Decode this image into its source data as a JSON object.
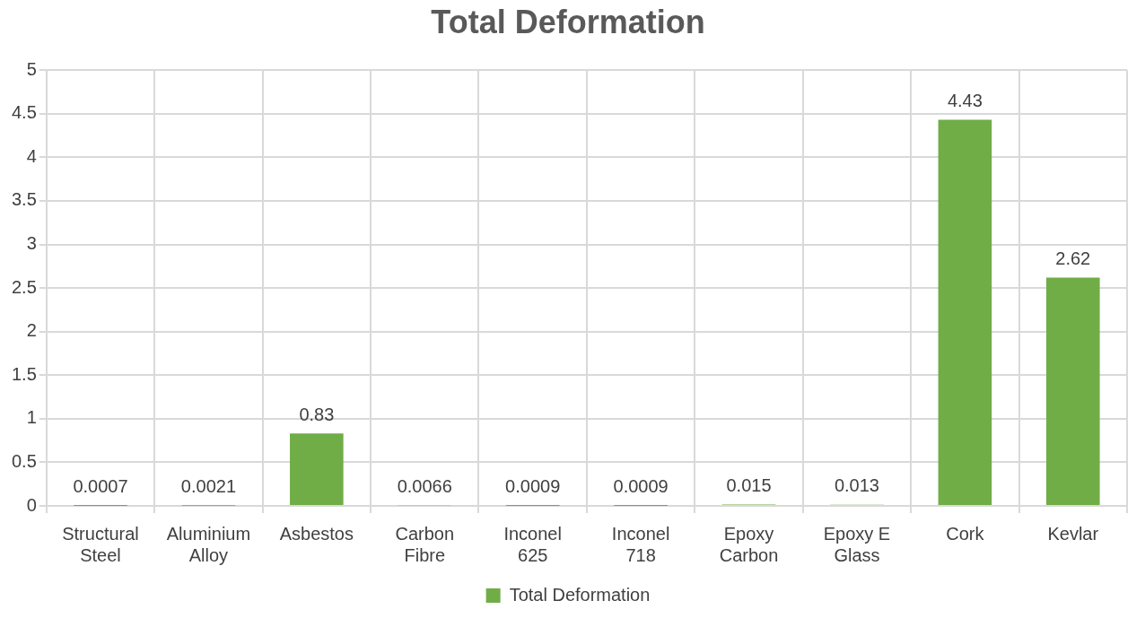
{
  "chart_data": {
    "type": "bar",
    "title": "Total Deformation",
    "categories": [
      "Structural Steel",
      "Aluminium Alloy",
      "Asbestos",
      "Carbon Fibre",
      "Inconel 625",
      "Inconel 718",
      "Epoxy Carbon",
      "Epoxy E Glass",
      "Cork",
      "Kevlar"
    ],
    "series": [
      {
        "name": "Total Deformation",
        "color": "#70ad47",
        "values": [
          0.0007,
          0.0021,
          0.83,
          0.0066,
          0.0009,
          0.0009,
          0.015,
          0.013,
          4.43,
          2.62
        ]
      }
    ],
    "ylim": [
      0,
      5
    ],
    "yticks": [
      0,
      0.5,
      1,
      1.5,
      2,
      2.5,
      3,
      3.5,
      4,
      4.5,
      5
    ],
    "grid": true,
    "legend": "bottom",
    "data_labels": true
  }
}
